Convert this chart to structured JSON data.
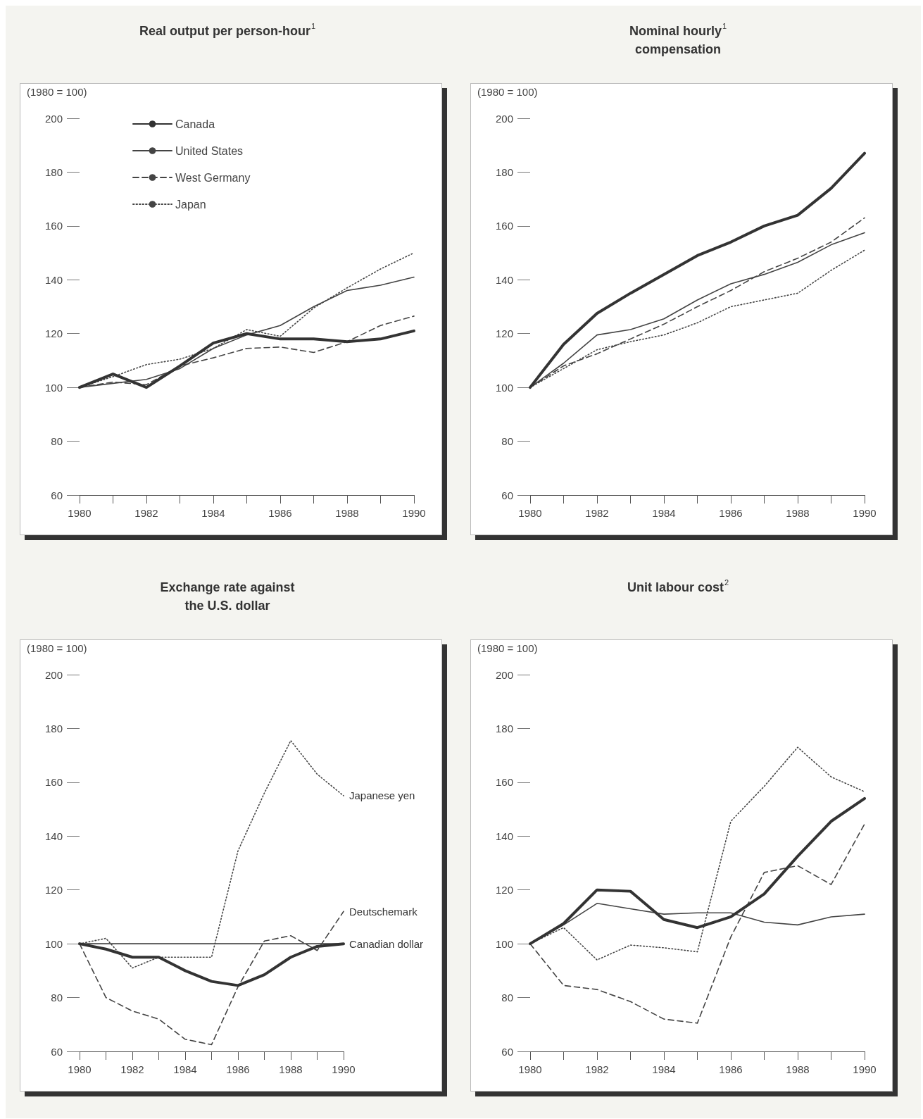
{
  "chart_data": [
    {
      "type": "line",
      "title": "Real output per person-hour$^{1}$",
      "ylabel": "(1980 = 100)",
      "x": [
        1980,
        1981,
        1982,
        1983,
        1984,
        1985,
        1986,
        1987,
        1988,
        1989,
        1990
      ],
      "xlim": [
        1980,
        1990
      ],
      "xticks": [
        1980,
        {
          "value": 1981,
          "label": null
        },
        1982,
        {
          "value": 1983,
          "label": null
        },
        1984,
        {
          "value": 1985,
          "label": null
        },
        1986,
        {
          "value": 1987,
          "label": null
        },
        1988,
        {
          "value": 1989,
          "label": null
        },
        1990
      ],
      "ylim": [
        60,
        200
      ],
      "yticks": [
        60,
        80,
        100,
        120,
        140,
        160,
        180,
        200
      ],
      "legend": "top left",
      "series": [
        {
          "name": "Canada",
          "color": "#333333",
          "line_style": "solid",
          "values": [
            100,
            105,
            100,
            108,
            116.5,
            120,
            118,
            118,
            117,
            118,
            121
          ]
        },
        {
          "name": "United States",
          "color": "#444444",
          "line_style": "solid",
          "values": [
            100,
            101.5,
            103,
            107,
            114.5,
            119.5,
            123,
            130,
            136,
            138,
            141
          ]
        },
        {
          "name": "West Germany",
          "color": "#444444",
          "line_style": "dashed",
          "values": [
            100,
            102,
            101,
            108,
            111,
            114.5,
            115,
            113,
            117,
            123,
            126.5
          ]
        },
        {
          "name": "Japan",
          "color": "#444444",
          "line_style": "dotted",
          "values": [
            100,
            104,
            108.5,
            110.5,
            114.5,
            121.5,
            119,
            129.5,
            137,
            144,
            150
          ]
        }
      ]
    },
    {
      "type": "line",
      "title": "Nominal hourly$^{1}$\ncompensation",
      "ylabel": "(1980 = 100)",
      "x": [
        1980,
        1981,
        1982,
        1983,
        1984,
        1985,
        1986,
        1987,
        1988,
        1989,
        1990
      ],
      "xlim": [
        1980,
        1990
      ],
      "xticks": [
        1980,
        {
          "value": 1981,
          "label": null
        },
        1982,
        {
          "value": 1983,
          "label": null
        },
        1984,
        {
          "value": 1985,
          "label": null
        },
        1986,
        {
          "value": 1987,
          "label": null
        },
        1988,
        {
          "value": 1989,
          "label": null
        },
        1990
      ],
      "ylim": [
        60,
        200
      ],
      "yticks": [
        60,
        80,
        100,
        120,
        140,
        160,
        180,
        200
      ],
      "series": [
        {
          "color": "#333333",
          "line_style": "solid",
          "values": [
            100,
            116,
            127.5,
            135,
            142,
            149,
            154,
            160,
            164,
            174,
            187
          ]
        },
        {
          "color": "#444444",
          "line_style": "solid",
          "values": [
            100,
            109,
            119.5,
            121.5,
            125.5,
            132.5,
            138.5,
            142,
            146.5,
            153,
            157.5
          ]
        },
        {
          "color": "#444444",
          "line_style": "dashed",
          "values": [
            100,
            108,
            112.5,
            118,
            123.5,
            130,
            136,
            143,
            148,
            154,
            163
          ]
        },
        {
          "color": "#444444",
          "line_style": "dotted",
          "values": [
            100,
            107,
            114,
            117,
            119.5,
            124,
            130,
            132.5,
            135,
            143.5,
            151
          ]
        }
      ]
    },
    {
      "type": "line",
      "title": "Exchange rate against\nthe U.S. dollar",
      "ylabel": "(1980 = 100)",
      "x": [
        1980,
        1981,
        1982,
        1983,
        1984,
        1985,
        1986,
        1987,
        1988,
        1989,
        1990
      ],
      "xlim": [
        1980,
        1990
      ],
      "xticks": [
        1980,
        {
          "value": 1981,
          "label": null
        },
        1982,
        {
          "value": 1983,
          "label": null
        },
        1984,
        {
          "value": 1985,
          "label": null
        },
        1986,
        {
          "value": 1987,
          "label": null
        },
        1988,
        {
          "value": 1989,
          "label": null
        },
        1990
      ],
      "ylim": [
        60,
        200
      ],
      "yticks": [
        60,
        80,
        100,
        120,
        140,
        160,
        180,
        200
      ],
      "series": [
        {
          "name": "Canadian dollar",
          "color": "#333333",
          "line_style": "solid",
          "values": [
            100,
            98,
            95,
            95,
            90,
            86,
            84.5,
            88.5,
            95,
            99,
            100
          ]
        },
        {
          "color": "#444444",
          "line_style": "solid",
          "values": [
            100,
            100,
            100,
            100,
            100,
            100,
            100,
            100,
            100,
            100,
            100
          ]
        },
        {
          "name": "Deutschemark",
          "color": "#444444",
          "line_style": "dashed",
          "values": [
            100,
            80,
            75,
            72,
            64.5,
            62.5,
            84,
            101,
            103,
            97.5,
            112
          ]
        },
        {
          "name": "Japanese yen",
          "color": "#444444",
          "line_style": "dotted",
          "values": [
            100,
            102,
            91,
            95,
            95,
            95,
            134.5,
            156,
            175.5,
            163,
            155
          ]
        }
      ]
    },
    {
      "type": "line",
      "title": "Unit labour cost$^{2}$",
      "ylabel": "(1980 = 100)",
      "x": [
        1980,
        1981,
        1982,
        1983,
        1984,
        1985,
        1986,
        1987,
        1988,
        1989,
        1990
      ],
      "xlim": [
        1980,
        1990
      ],
      "xticks": [
        1980,
        {
          "value": 1981,
          "label": null
        },
        1982,
        {
          "value": 1983,
          "label": null
        },
        1984,
        {
          "value": 1985,
          "label": null
        },
        1986,
        {
          "value": 1987,
          "label": null
        },
        1988,
        {
          "value": 1989,
          "label": null
        },
        1990
      ],
      "ylim": [
        60,
        200
      ],
      "yticks": [
        60,
        80,
        100,
        120,
        140,
        160,
        180,
        200
      ],
      "series": [
        {
          "color": "#333333",
          "line_style": "solid",
          "values": [
            100,
            107.5,
            120,
            119.5,
            109,
            106,
            110,
            118.5,
            132.5,
            145.5,
            154
          ]
        },
        {
          "color": "#444444",
          "line_style": "solid",
          "values": [
            100,
            107,
            115,
            113,
            111,
            111.5,
            111.5,
            108,
            107,
            110,
            111
          ]
        },
        {
          "color": "#444444",
          "line_style": "dashed",
          "values": [
            100,
            84.5,
            83,
            78.5,
            72,
            70.5,
            102.5,
            126.5,
            129,
            122,
            144.5
          ]
        },
        {
          "color": "#444444",
          "line_style": "dotted",
          "values": [
            100,
            106,
            94,
            99.5,
            98.5,
            97,
            145.5,
            158.5,
            173,
            162,
            156.5
          ]
        }
      ]
    }
  ]
}
